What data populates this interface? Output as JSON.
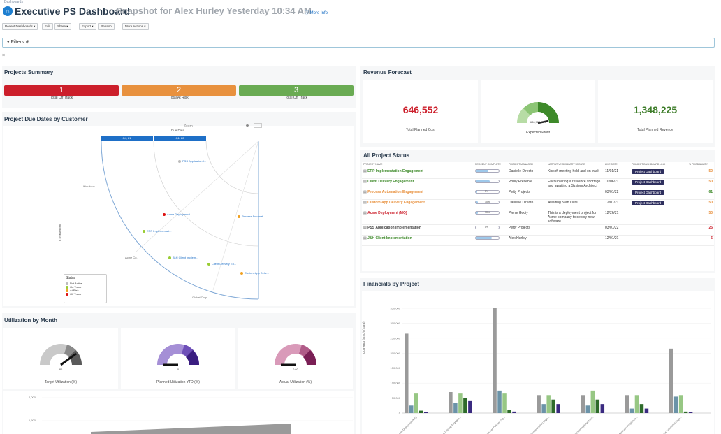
{
  "header": {
    "breadcrumb": "Dashboards",
    "title": "Executive PS Dashboard",
    "subtitle": "Snapshot for Alex Hurley Yesterday 10:34 AM",
    "more_info": "More Info"
  },
  "toolbar": {
    "recent": "Recent Dashboards ▾",
    "edit": "Edit",
    "share": "Share ▾",
    "export": "Export ▾",
    "refresh": "Refresh",
    "more_actions": "More Actions ▾"
  },
  "filters": {
    "label": "Filters"
  },
  "projects_summary": {
    "title": "Projects Summary",
    "kpis": [
      {
        "value": "1",
        "label": "Total Off Track",
        "color": "#cc1f2b"
      },
      {
        "value": "2",
        "label": "Total At Risk",
        "color": "#e8913e"
      },
      {
        "value": "3",
        "label": "Total On Track",
        "color": "#6aab53"
      }
    ]
  },
  "revenue": {
    "title": "Revenue Forecast",
    "cost": {
      "value": "646,552",
      "label": "Total Planned Cost",
      "color": "#cc1f2b"
    },
    "profit": {
      "value": "630,750.724",
      "label": "Expected Profit"
    },
    "revenue": {
      "value": "1,348,225",
      "label": "Total Planned Revenue",
      "color": "#3e7d2a"
    }
  },
  "due_dates": {
    "title": "Project Due Dates by Customer",
    "xlabel": "Due Date",
    "ylabel": "Customers",
    "zoom": "Zoom",
    "quarters": [
      "Q4, 21",
      "Q1, 22"
    ],
    "customers": [
      "Global Corp",
      "Acme Co.",
      "Ubiquitous"
    ],
    "legend": {
      "title": "Status",
      "items": [
        {
          "name": "Not Active",
          "color": "#bbbbbb"
        },
        {
          "name": "On Track",
          "color": "#99cc33"
        },
        {
          "name": "At Risk",
          "color": "#f0a020"
        },
        {
          "name": "Off Track",
          "color": "#dd1111"
        }
      ]
    },
    "points": [
      {
        "name": "PSS Application I...",
        "status": "Not Active"
      },
      {
        "name": "Acme Deployment...",
        "status": "Off Track"
      },
      {
        "name": "ERP Implementati...",
        "status": "On Track"
      },
      {
        "name": "Process Automati...",
        "status": "At Risk"
      },
      {
        "name": "J&H Client Implem...",
        "status": "On Track"
      },
      {
        "name": "Client Delivery En...",
        "status": "On Track"
      },
      {
        "name": "Custom App Deliv...",
        "status": "At Risk"
      }
    ]
  },
  "project_status": {
    "title": "All Project Status",
    "columns": [
      "PROJECT NAME",
      "PERCENT COMPLETE",
      "PROJECT MANAGER",
      "NARRATIVE SUMMARY UPDATE",
      "LIVE DATE",
      "PROJECT DASHBOARD LINK",
      "% PROBABILITY"
    ],
    "button_label": "Project Dashboard",
    "rows": [
      {
        "name": "ERP Implementation Engagement",
        "name_color": "#3e8a2a",
        "pct": "",
        "pct_fill": 0.55,
        "manager": "Danielle Directo",
        "summary": "Kickoff meeting held and on track",
        "date": "11/01/21",
        "button": true,
        "prob": "50",
        "prob_color": "#e8913e"
      },
      {
        "name": "Client Delivery Engagement",
        "name_color": "#3e8a2a",
        "pct": "",
        "pct_fill": 0.6,
        "manager": "Pouly Preserve",
        "summary": "Encountering a resource shortage and awaiting a System Architect",
        "date": "10/06/21",
        "button": true,
        "prob": "50",
        "prob_color": "#e8913e"
      },
      {
        "name": "Process Automation Engagement",
        "name_color": "#e8913e",
        "pct": "5%",
        "pct_fill": 0.05,
        "manager": "Petty Projects",
        "summary": "",
        "date": "03/01/22",
        "button": true,
        "prob": "61",
        "prob_color": "#3e8a2a"
      },
      {
        "name": "Custom App Delivery Engagement",
        "name_color": "#e8913e",
        "pct": "10%",
        "pct_fill": 0.1,
        "manager": "Danielle Directo",
        "summary": "Awaiting Start Date",
        "date": "12/01/21",
        "button": true,
        "prob": "50",
        "prob_color": "#e8913e"
      },
      {
        "name": "Acme Deployment (MQ)",
        "name_color": "#cc1f2b",
        "pct": "10%",
        "pct_fill": 0.1,
        "manager": "Pierre Godiy",
        "summary": "This is a deployment project for Acme company to deploy new software",
        "date": "12/26/21",
        "button": false,
        "prob": "50",
        "prob_color": "#e8913e"
      },
      {
        "name": "PSS Application Implementation",
        "name_color": "#444444",
        "pct": "0%",
        "pct_fill": 0,
        "manager": "Petty Projects",
        "summary": "",
        "date": "03/01/22",
        "button": false,
        "prob": "25",
        "prob_color": "#cc1f2b"
      },
      {
        "name": "J&H Client Implementation",
        "name_color": "#3e8a2a",
        "pct": "",
        "pct_fill": 0.7,
        "manager": "Alex Hurley",
        "summary": "",
        "date": "12/01/21",
        "button": false,
        "prob": "6",
        "prob_color": "#cc1f2b"
      }
    ]
  },
  "utilization": {
    "title": "Utilization by Month",
    "gauges": [
      {
        "label": "Target Utilization (%)",
        "value": "80"
      },
      {
        "label": "Planned Utilization YTD (%)",
        "value": "0"
      },
      {
        "label": "Actual Utilization (%)",
        "value": "0.02"
      }
    ],
    "yticks": [
      "2,000",
      "1,500"
    ]
  },
  "financials": {
    "title": "Financials by Project",
    "ylabel": "Currency (USD) (Sum)",
    "yticks": [
      "350,000",
      "300,000",
      "250,000",
      "200,000",
      "150,000",
      "100,000",
      "50,000",
      "0"
    ]
  },
  "chart_data": {
    "type": "bar",
    "title": "Financials by Project",
    "ylabel": "Currency (USD) (Sum)",
    "ylim": [
      0,
      350000
    ],
    "categories": [
      "Acme Deployment (MQ)",
      "Client Delivery Engagem...",
      "Custom App Delivery Eng...",
      "ERP Implementation Enga...",
      "J&H Client Implementation",
      "PSS Application Implemen...",
      "Process Automation Enga..."
    ],
    "series": [
      {
        "color": "#9a9a9a",
        "values": [
          265000,
          70000,
          350000,
          60000,
          60000,
          60000,
          215000
        ]
      },
      {
        "color": "#6b93a8",
        "values": [
          25000,
          35000,
          75000,
          30000,
          25000,
          15000,
          55000
        ]
      },
      {
        "color": "#97c784",
        "values": [
          65000,
          65000,
          65000,
          60000,
          75000,
          60000,
          60000
        ]
      },
      {
        "color": "#2e6b2a",
        "values": [
          8000,
          50000,
          10000,
          45000,
          45000,
          30000,
          5000
        ]
      },
      {
        "color": "#3a2a80",
        "values": [
          3000,
          40000,
          5000,
          30000,
          30000,
          15000,
          3000
        ]
      }
    ]
  }
}
